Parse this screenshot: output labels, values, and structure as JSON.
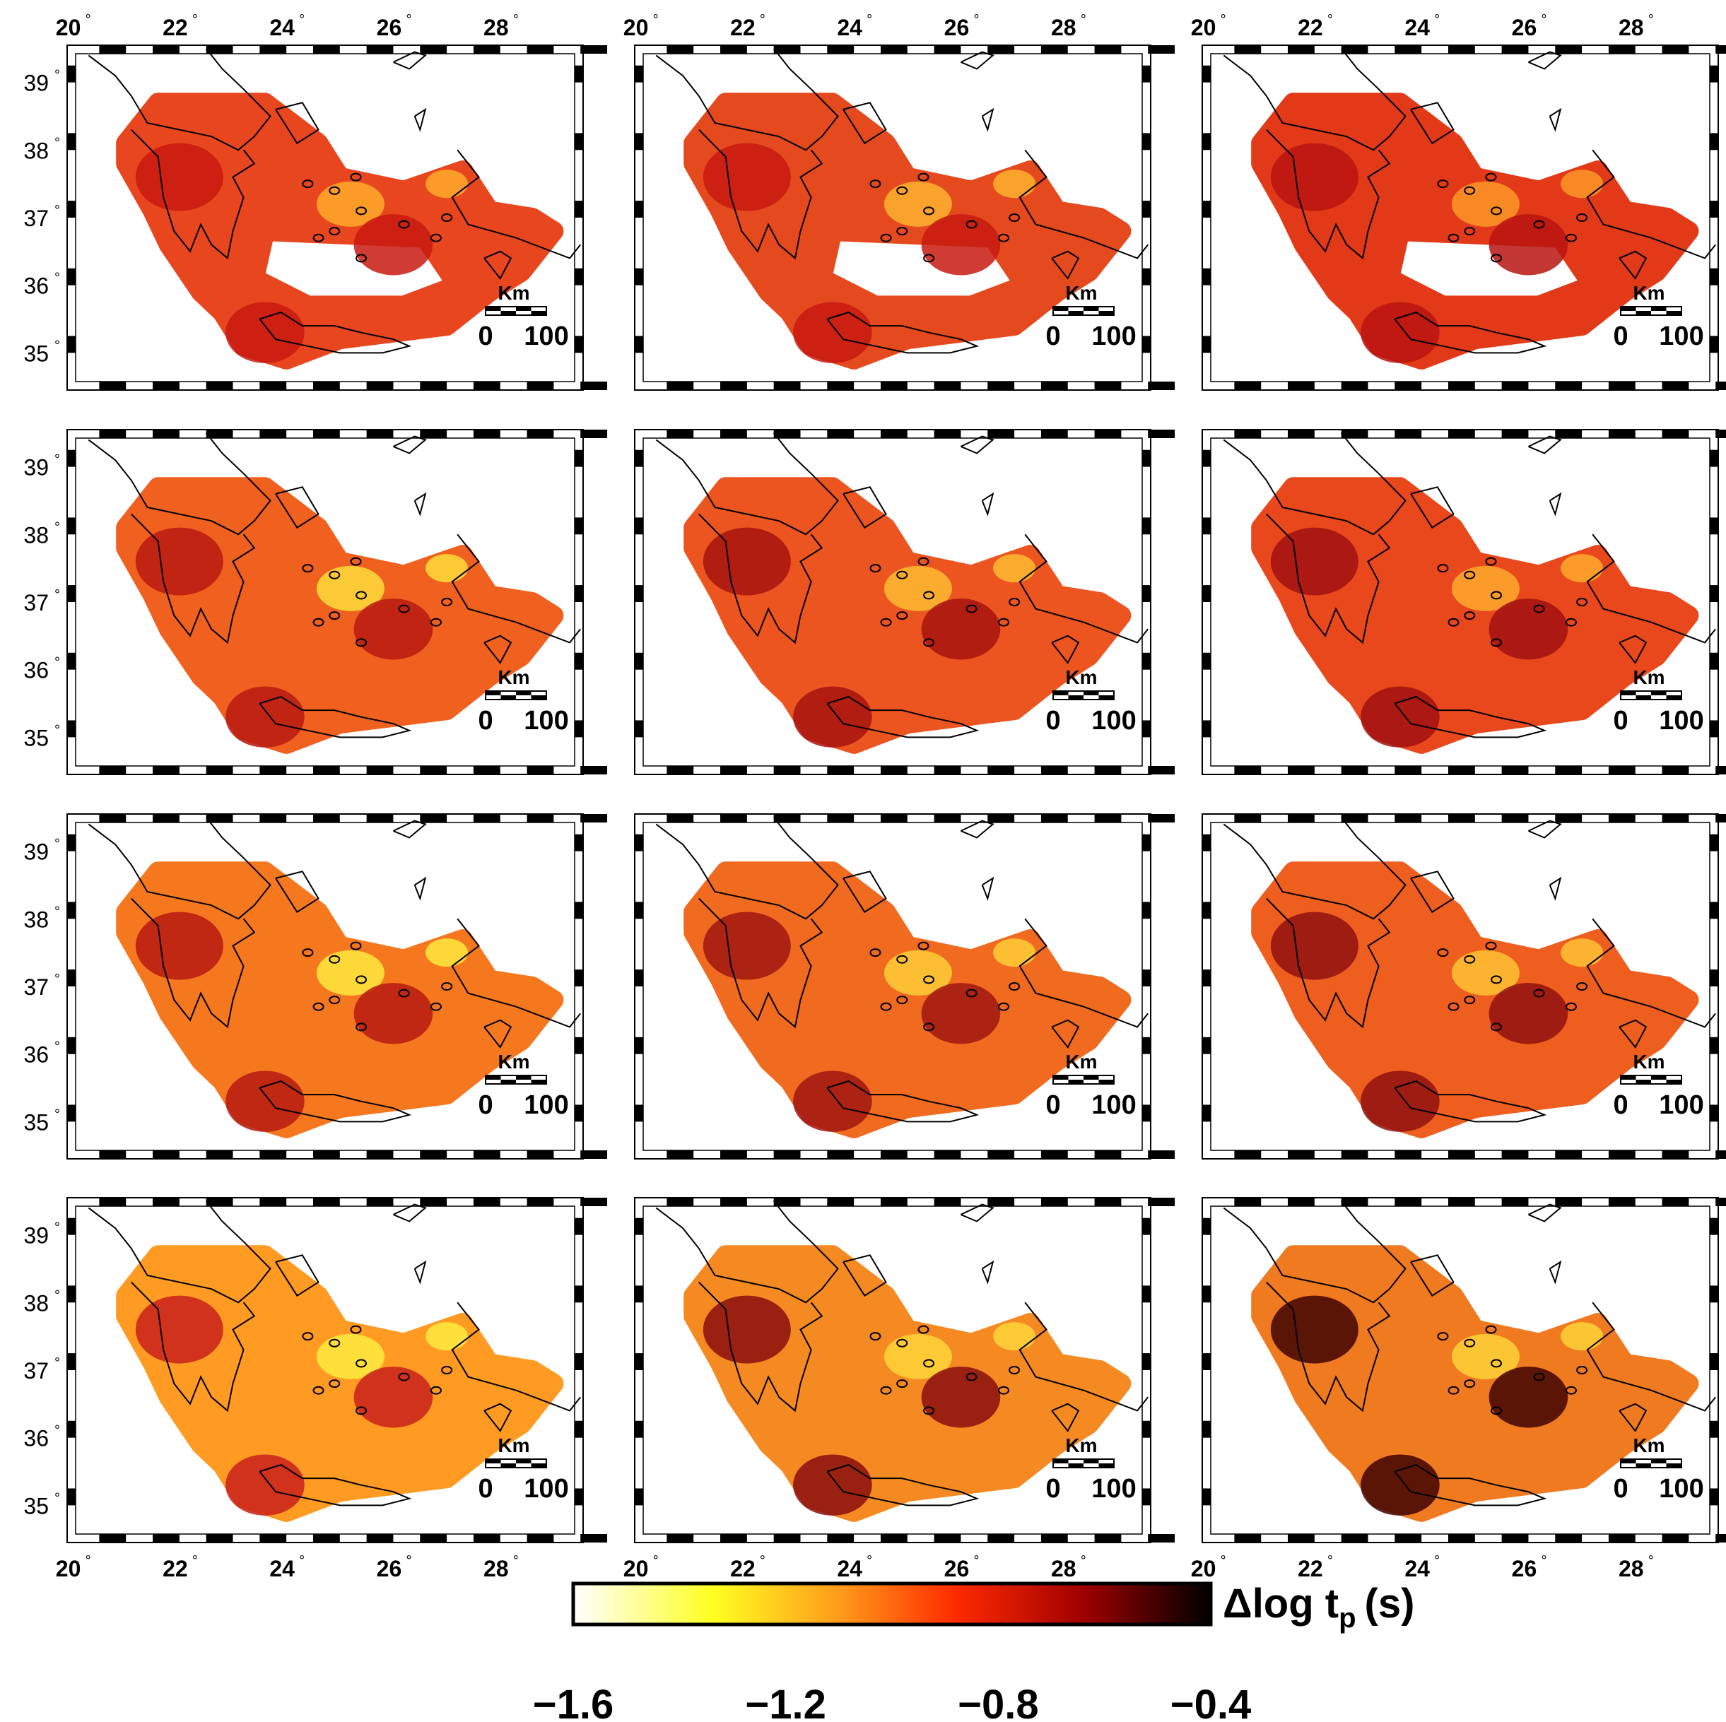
{
  "figure": {
    "lon_ticks": [
      "20",
      "22",
      "24",
      "26",
      "28"
    ],
    "lat_ticks": [
      "39",
      "38",
      "37",
      "36",
      "35"
    ],
    "degree_symbol": "°",
    "scale_bar": {
      "unit": "Km",
      "label_start": "0",
      "label_end": "100"
    },
    "grid": {
      "rows": 4,
      "cols": 3
    },
    "top_ticks_on_row": 0,
    "bottom_ticks_on_row": 3,
    "left_ticks_on_col": 0
  },
  "colorbar": {
    "title": "Δlog t",
    "subscript": "p",
    "unit": "(s)",
    "ticks": [
      "−1.6",
      "−1.2",
      "−0.8",
      "−0.4"
    ],
    "range": [
      -1.6,
      -0.4
    ],
    "stops": [
      "#ffffff",
      "#ffff20",
      "#ff9a1a",
      "#ff2a00",
      "#a00000",
      "#000000"
    ]
  },
  "panels": [
    {
      "fill": "#e8461f",
      "accent": "#c81a10",
      "light": "#ffb02a"
    },
    {
      "fill": "#e54a1e",
      "accent": "#c81a10",
      "light": "#ffb830"
    },
    {
      "fill": "#e23a18",
      "accent": "#b81410",
      "light": "#ff9e28"
    },
    {
      "fill": "#f0601f",
      "accent": "#b81a12",
      "light": "#ffe53a"
    },
    {
      "fill": "#ec5520",
      "accent": "#a81410",
      "light": "#ffc233"
    },
    {
      "fill": "#e8481c",
      "accent": "#a01210",
      "light": "#ffb22e"
    },
    {
      "fill": "#f5781f",
      "accent": "#b61a12",
      "light": "#fff040"
    },
    {
      "fill": "#f06a20",
      "accent": "#a01612",
      "light": "#ffd438"
    },
    {
      "fill": "#ee5e1e",
      "accent": "#901010",
      "light": "#ffc834"
    },
    {
      "fill": "#ff9a22",
      "accent": "#c8201a",
      "light": "#fff040"
    },
    {
      "fill": "#f58a22",
      "accent": "#8a0e0e",
      "light": "#ffd83a"
    },
    {
      "fill": "#f07a20",
      "accent": "#400404",
      "light": "#ffd838"
    }
  ]
}
